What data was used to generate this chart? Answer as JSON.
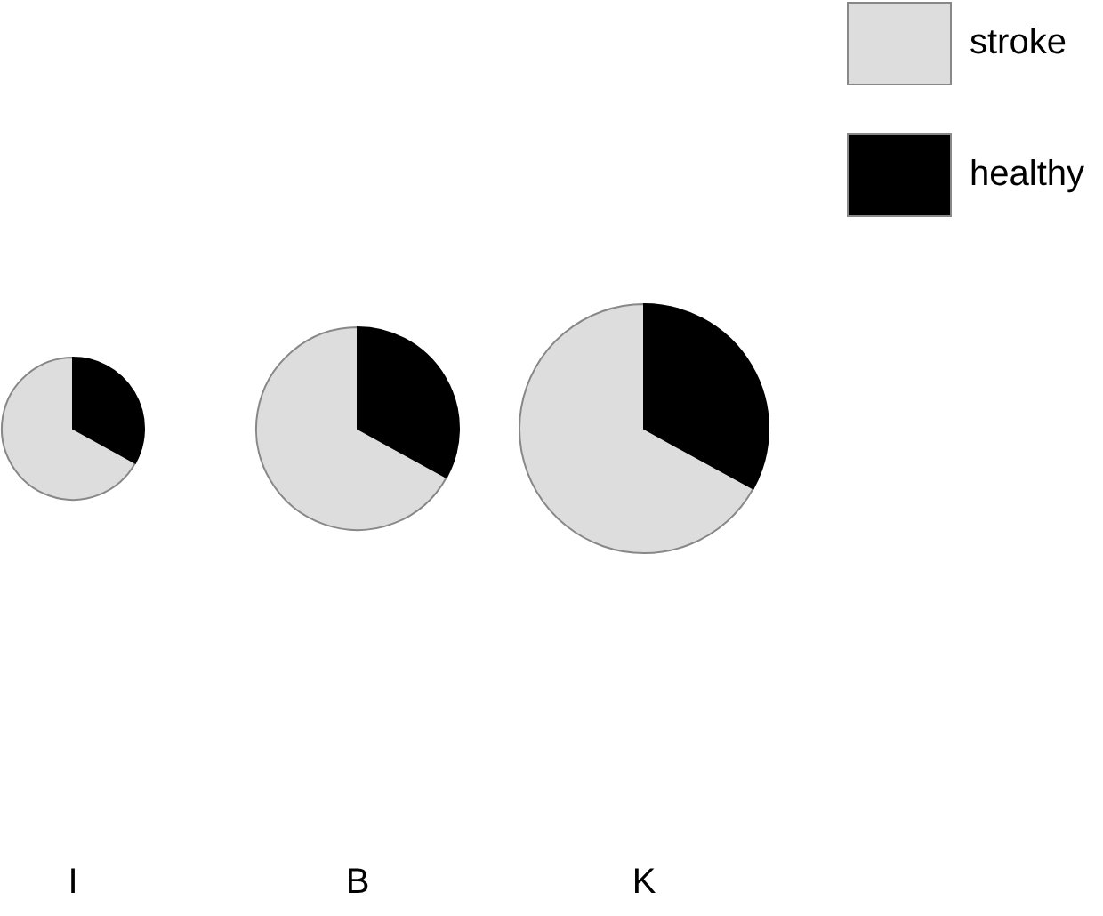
{
  "chart_data": [
    {
      "type": "pie",
      "xlabel": "I",
      "categories": [
        "stroke",
        "healthy"
      ],
      "values": [
        67,
        33
      ],
      "colors": [
        "#dddddd",
        "#000000"
      ],
      "legend": "top right"
    },
    {
      "type": "pie",
      "xlabel": "B",
      "categories": [
        null,
        null
      ],
      "values": [
        67,
        33
      ],
      "colors": [
        "#dddddd",
        "#000000"
      ]
    },
    {
      "type": "pie",
      "xlabel": "K",
      "categories": [
        null,
        null
      ],
      "values": [
        67,
        33
      ],
      "colors": [
        "#dddddd",
        "#000000"
      ]
    }
  ]
}
